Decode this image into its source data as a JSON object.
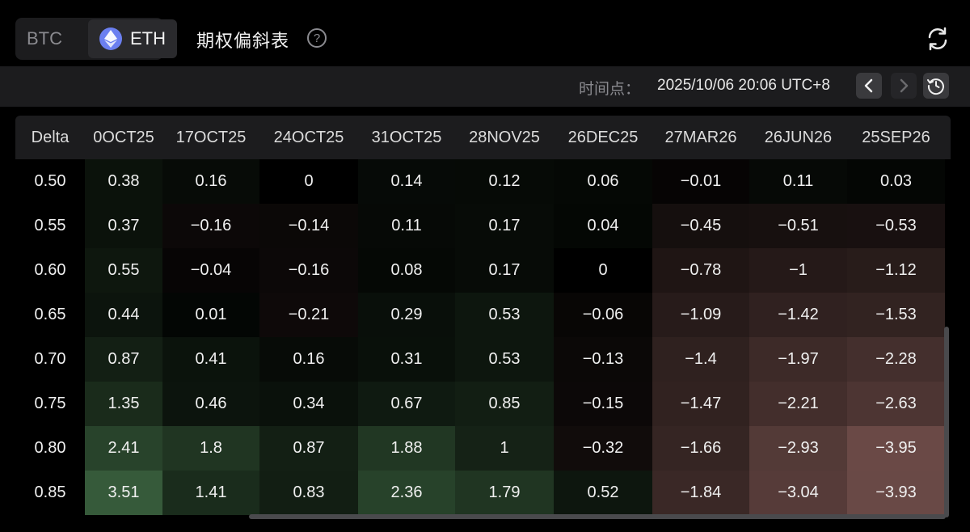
{
  "header": {
    "coins": {
      "btc": "BTC",
      "eth": "ETH"
    },
    "title": "期权偏斜表",
    "help": "?"
  },
  "timebar": {
    "label": "时间点：",
    "value": "2025/10/06 20:06 UTC+8"
  },
  "table": {
    "delta_header": "Delta",
    "columns": [
      "0OCT25",
      "17OCT25",
      "24OCT25",
      "31OCT25",
      "28NOV25",
      "26DEC25",
      "27MAR26",
      "26JUN26",
      "25SEP26"
    ],
    "rows": [
      {
        "delta": "0.50",
        "values": [
          "0.38",
          "0.16",
          "0",
          "0.14",
          "0.12",
          "0.06",
          "−0.01",
          "0.11",
          "0.03"
        ]
      },
      {
        "delta": "0.55",
        "values": [
          "0.37",
          "−0.16",
          "−0.14",
          "0.11",
          "0.17",
          "0.04",
          "−0.45",
          "−0.51",
          "−0.53"
        ]
      },
      {
        "delta": "0.60",
        "values": [
          "0.55",
          "−0.04",
          "−0.16",
          "0.08",
          "0.17",
          "0",
          "−0.78",
          "−1",
          "−1.12"
        ]
      },
      {
        "delta": "0.65",
        "values": [
          "0.44",
          "0.01",
          "−0.21",
          "0.29",
          "0.53",
          "−0.06",
          "−1.09",
          "−1.42",
          "−1.53"
        ]
      },
      {
        "delta": "0.70",
        "values": [
          "0.87",
          "0.41",
          "0.16",
          "0.31",
          "0.53",
          "−0.13",
          "−1.4",
          "−1.97",
          "−2.28"
        ]
      },
      {
        "delta": "0.75",
        "values": [
          "1.35",
          "0.46",
          "0.34",
          "0.67",
          "0.85",
          "−0.15",
          "−1.47",
          "−2.21",
          "−2.63"
        ]
      },
      {
        "delta": "0.80",
        "values": [
          "2.41",
          "1.8",
          "0.87",
          "1.88",
          "1",
          "−0.32",
          "−1.66",
          "−2.93",
          "−3.95"
        ]
      },
      {
        "delta": "0.85",
        "values": [
          "3.51",
          "1.41",
          "0.83",
          "2.36",
          "1.79",
          "0.52",
          "−1.84",
          "−3.04",
          "−3.93"
        ]
      }
    ]
  },
  "colors": {
    "positive_max": "#3c6440",
    "negative_max": "#6b4a47",
    "base": "#000000"
  }
}
